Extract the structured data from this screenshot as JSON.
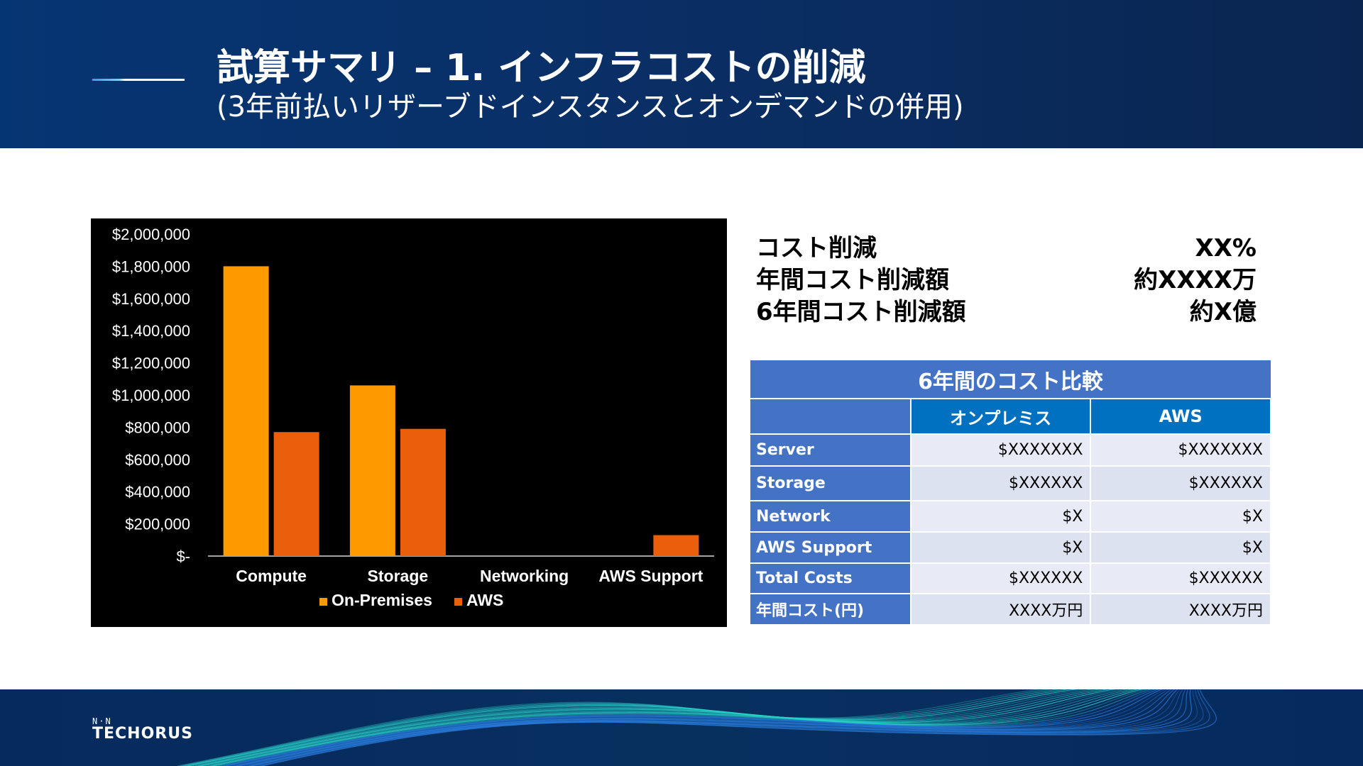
{
  "header": {
    "title": "試算サマリ – 1. インフラコストの削減",
    "subtitle": "(3年前払いリザーブドインスタンスとオンデマンドの併用)"
  },
  "summary": [
    {
      "label": "コスト削減",
      "value": "XX%"
    },
    {
      "label": "年間コスト削減額",
      "value": "約XXXX万"
    },
    {
      "label": "6年間コスト削減額",
      "value": "約X億"
    }
  ],
  "table": {
    "caption": "6年間のコスト比較",
    "columns": [
      "",
      "オンプレミス",
      "AWS"
    ],
    "rows": [
      {
        "label": "Server",
        "onprem": "$XXXXXXX",
        "aws": "$XXXXXXX"
      },
      {
        "label": "Storage",
        "onprem": "$XXXXXX",
        "aws": "$XXXXXX"
      },
      {
        "label": "Network",
        "onprem": "$X",
        "aws": "$X"
      },
      {
        "label": "AWS Support",
        "onprem": "$X",
        "aws": "$X"
      },
      {
        "label": "Total Costs",
        "onprem": "$XXXXXX",
        "aws": "$XXXXXX"
      },
      {
        "label": "年間コスト(円)",
        "onprem": "XXXX万円",
        "aws": "XXXX万円"
      }
    ]
  },
  "footer": {
    "logo_mark": "N·N",
    "logo_text": "TECHORUS"
  },
  "colors": {
    "header_bg": "#063573",
    "onprem": "#ff9900",
    "aws": "#ea5f0c",
    "table_header": "#4472c4",
    "table_subheader": "#0070c0"
  },
  "chart_data": {
    "type": "bar",
    "categories": [
      "Compute",
      "Storage",
      "Networking",
      "AWS Support"
    ],
    "series": [
      {
        "name": "On-Premises",
        "values": [
          1800000,
          1060000,
          0,
          0
        ]
      },
      {
        "name": "AWS",
        "values": [
          770000,
          790000,
          0,
          130000
        ]
      }
    ],
    "ylim": [
      0,
      2000000
    ],
    "yticks": [
      0,
      200000,
      400000,
      600000,
      800000,
      1000000,
      1200000,
      1400000,
      1600000,
      1800000,
      2000000
    ],
    "ytick_labels": [
      "$-",
      "$200,000",
      "$400,000",
      "$600,000",
      "$800,000",
      "$1,000,000",
      "$1,200,000",
      "$1,400,000",
      "$1,600,000",
      "$1,800,000",
      "$2,000,000"
    ],
    "title": "",
    "xlabel": "",
    "ylabel": "",
    "legend": "bottom",
    "grid": false
  }
}
